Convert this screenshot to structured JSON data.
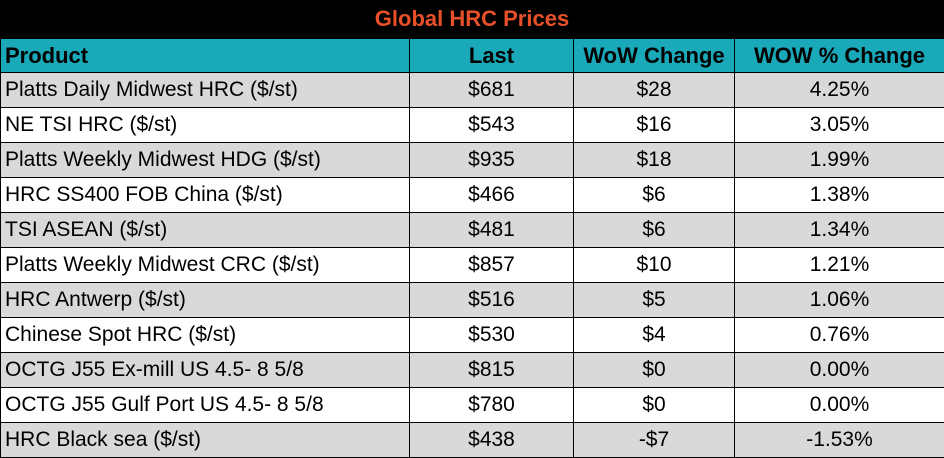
{
  "title": "Global HRC Prices",
  "colors": {
    "title_bg": "#000000",
    "title_text": "#e8502a",
    "header_bg": "#1aa9b9",
    "row_shade": "#d9d9d9"
  },
  "headers": [
    "Product",
    "Last",
    "WoW Change",
    "WOW % Change"
  ],
  "rows": [
    {
      "product": "Platts Daily Midwest HRC ($/st)",
      "last": "$681",
      "wow": "$28",
      "pct": "4.25%"
    },
    {
      "product": "NE TSI HRC ($/st)",
      "last": "$543",
      "wow": "$16",
      "pct": "3.05%"
    },
    {
      "product": "Platts Weekly Midwest HDG ($/st)",
      "last": "$935",
      "wow": "$18",
      "pct": "1.99%"
    },
    {
      "product": "HRC SS400 FOB China ($/st)",
      "last": "$466",
      "wow": "$6",
      "pct": "1.38%"
    },
    {
      "product": "TSI ASEAN ($/st)",
      "last": "$481",
      "wow": "$6",
      "pct": "1.34%"
    },
    {
      "product": "Platts Weekly Midwest CRC ($/st)",
      "last": "$857",
      "wow": "$10",
      "pct": "1.21%"
    },
    {
      "product": "HRC Antwerp ($/st)",
      "last": "$516",
      "wow": "$5",
      "pct": "1.06%"
    },
    {
      "product": "Chinese Spot HRC ($/st)",
      "last": "$530",
      "wow": "$4",
      "pct": "0.76%"
    },
    {
      "product": "OCTG J55 Ex-mill US 4.5- 8 5/8",
      "last": "$815",
      "wow": "$0",
      "pct": "0.00%"
    },
    {
      "product": "OCTG J55 Gulf Port US 4.5- 8 5/8",
      "last": "$780",
      "wow": "$0",
      "pct": "0.00%"
    },
    {
      "product": "HRC Black sea ($/st)",
      "last": "$438",
      "wow": "-$7",
      "pct": "-1.53%"
    }
  ]
}
